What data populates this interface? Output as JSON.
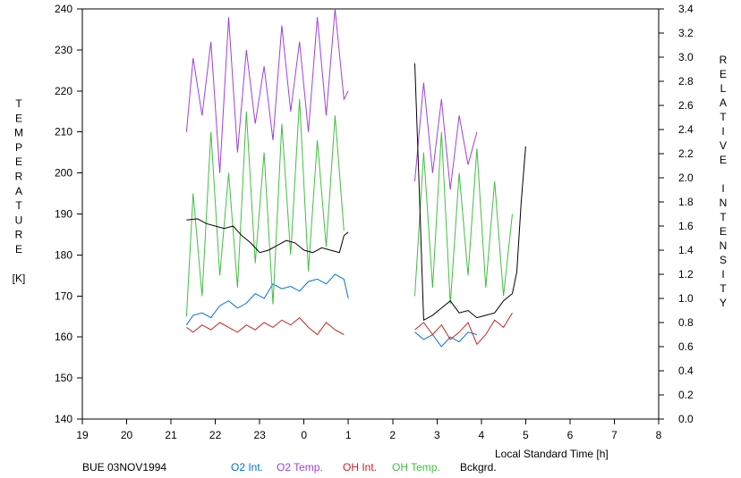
{
  "chart_data": {
    "type": "line",
    "station_label": "BUE 03NOV1994",
    "xlabel": "Local Standard Time [h]",
    "ylabel_left": [
      "T",
      "E",
      "M",
      "P",
      "E",
      "R",
      "A",
      "T",
      "U",
      "R",
      "E",
      "",
      "[K]"
    ],
    "ylabel_right": [
      "R",
      "E",
      "L",
      "A",
      "T",
      "I",
      "V",
      "E",
      "",
      "I",
      "N",
      "T",
      "E",
      "N",
      "S",
      "I",
      "T",
      "Y"
    ],
    "ylim_left": [
      140,
      240
    ],
    "ylim_right": [
      0.0,
      3.4
    ],
    "xlim": [
      19,
      32
    ],
    "x_ticks": [
      19,
      20,
      21,
      22,
      23,
      24,
      25,
      26,
      27,
      28,
      29,
      30,
      31,
      32
    ],
    "x_tick_labels": [
      "19",
      "20",
      "21",
      "22",
      "23",
      "0",
      "1",
      "2",
      "3",
      "4",
      "5",
      "6",
      "7",
      "8"
    ],
    "y_left_ticks": [
      "140",
      "150",
      "160",
      "170",
      "180",
      "190",
      "200",
      "210",
      "220",
      "230",
      "240"
    ],
    "y_right_ticks": [
      "0.0",
      "0.2",
      "0.4",
      "0.6",
      "0.8",
      "1.0",
      "1.2",
      "1.4",
      "1.6",
      "1.8",
      "2.0",
      "2.2",
      "2.4",
      "2.6",
      "2.8",
      "3.0",
      "3.2",
      "3.4"
    ],
    "series": [
      {
        "name": "O2 Int.",
        "axis": "right",
        "color": "#0070e0",
        "segments": [
          {
            "x": [
              21.35,
              21.5,
              21.7,
              21.9,
              22.1,
              22.3,
              22.5,
              22.7,
              22.9,
              23.1,
              23.3,
              23.5,
              23.7,
              23.9,
              24.1,
              24.3,
              24.5,
              24.7,
              24.9,
              25.0
            ],
            "y": [
              0.78,
              0.86,
              0.88,
              0.84,
              0.94,
              0.98,
              0.92,
              0.96,
              1.04,
              1.0,
              1.12,
              1.08,
              1.1,
              1.06,
              1.14,
              1.16,
              1.12,
              1.2,
              1.16,
              1.0
            ]
          },
          {
            "x": [
              26.5,
              26.7,
              26.9,
              27.1,
              27.3,
              27.5,
              27.7,
              27.9
            ],
            "y": [
              0.72,
              0.66,
              0.7,
              0.6,
              0.68,
              0.64,
              0.72,
              0.7
            ]
          }
        ]
      },
      {
        "name": "O2 Temp.",
        "axis": "left",
        "color": "#a040e0",
        "segments": [
          {
            "x": [
              21.35,
              21.5,
              21.7,
              21.9,
              22.1,
              22.3,
              22.5,
              22.7,
              22.9,
              23.1,
              23.3,
              23.5,
              23.7,
              23.9,
              24.1,
              24.3,
              24.5,
              24.7,
              24.9,
              25.0
            ],
            "y": [
              210,
              228,
              214,
              232,
              200,
              238,
              205,
              230,
              212,
              226,
              208,
              236,
              215,
              232,
              210,
              238,
              214,
              240,
              218,
              220
            ]
          },
          {
            "x": [
              26.5,
              26.7,
              26.9,
              27.1,
              27.3,
              27.5,
              27.7,
              27.9
            ],
            "y": [
              198,
              222,
              200,
              218,
              196,
              214,
              202,
              210
            ]
          }
        ]
      },
      {
        "name": "OH Int.",
        "axis": "right",
        "color": "#d02020",
        "segments": [
          {
            "x": [
              21.35,
              21.5,
              21.7,
              21.9,
              22.1,
              22.3,
              22.5,
              22.7,
              22.9,
              23.1,
              23.3,
              23.5,
              23.7,
              23.9,
              24.1,
              24.3,
              24.5,
              24.7,
              24.9
            ],
            "y": [
              0.76,
              0.72,
              0.78,
              0.74,
              0.8,
              0.76,
              0.72,
              0.78,
              0.74,
              0.8,
              0.76,
              0.82,
              0.78,
              0.84,
              0.76,
              0.7,
              0.8,
              0.74,
              0.7
            ]
          },
          {
            "x": [
              26.5,
              26.7,
              26.9,
              27.1,
              27.3,
              27.5,
              27.7,
              27.9,
              28.1,
              28.3,
              28.5,
              28.7
            ],
            "y": [
              0.74,
              0.8,
              0.7,
              0.78,
              0.66,
              0.72,
              0.8,
              0.62,
              0.7,
              0.82,
              0.76,
              0.88
            ]
          }
        ]
      },
      {
        "name": "OH Temp.",
        "axis": "left",
        "color": "#40c040",
        "segments": [
          {
            "x": [
              21.35,
              21.5,
              21.7,
              21.9,
              22.1,
              22.3,
              22.5,
              22.7,
              22.9,
              23.1,
              23.3,
              23.5,
              23.7,
              23.9,
              24.1,
              24.3,
              24.5,
              24.7,
              24.9
            ],
            "y": [
              165,
              195,
              170,
              210,
              175,
              200,
              172,
              215,
              178,
              205,
              168,
              212,
              180,
              218,
              176,
              208,
              182,
              214,
              186
            ]
          },
          {
            "x": [
              26.5,
              26.7,
              26.9,
              27.1,
              27.3,
              27.5,
              27.7,
              27.9,
              28.1,
              28.3,
              28.5,
              28.7
            ],
            "y": [
              170,
              205,
              172,
              210,
              168,
              200,
              175,
              206,
              172,
              198,
              170,
              190
            ]
          }
        ]
      },
      {
        "name": "Bckgrd.",
        "axis": "right",
        "color": "#000000",
        "segments": [
          {
            "x": [
              21.35,
              21.6,
              21.8,
              22.0,
              22.2,
              22.4,
              22.6,
              22.8,
              23.0,
              23.2,
              23.4,
              23.6,
              23.8,
              24.0,
              24.2,
              24.4,
              24.6,
              24.8,
              24.9,
              25.0
            ],
            "y": [
              1.65,
              1.66,
              1.62,
              1.6,
              1.58,
              1.6,
              1.52,
              1.46,
              1.38,
              1.4,
              1.44,
              1.48,
              1.46,
              1.4,
              1.38,
              1.42,
              1.4,
              1.38,
              1.52,
              1.55
            ]
          },
          {
            "x": [
              26.5,
              26.6,
              26.7,
              26.9,
              27.1,
              27.3,
              27.5,
              27.7,
              27.9,
              28.1,
              28.3,
              28.5,
              28.7,
              28.8,
              28.9,
              29.0
            ],
            "y": [
              2.95,
              1.9,
              0.82,
              0.86,
              0.92,
              0.98,
              0.88,
              0.9,
              0.84,
              0.86,
              0.88,
              0.98,
              1.04,
              1.22,
              1.8,
              2.26
            ]
          }
        ]
      }
    ]
  }
}
